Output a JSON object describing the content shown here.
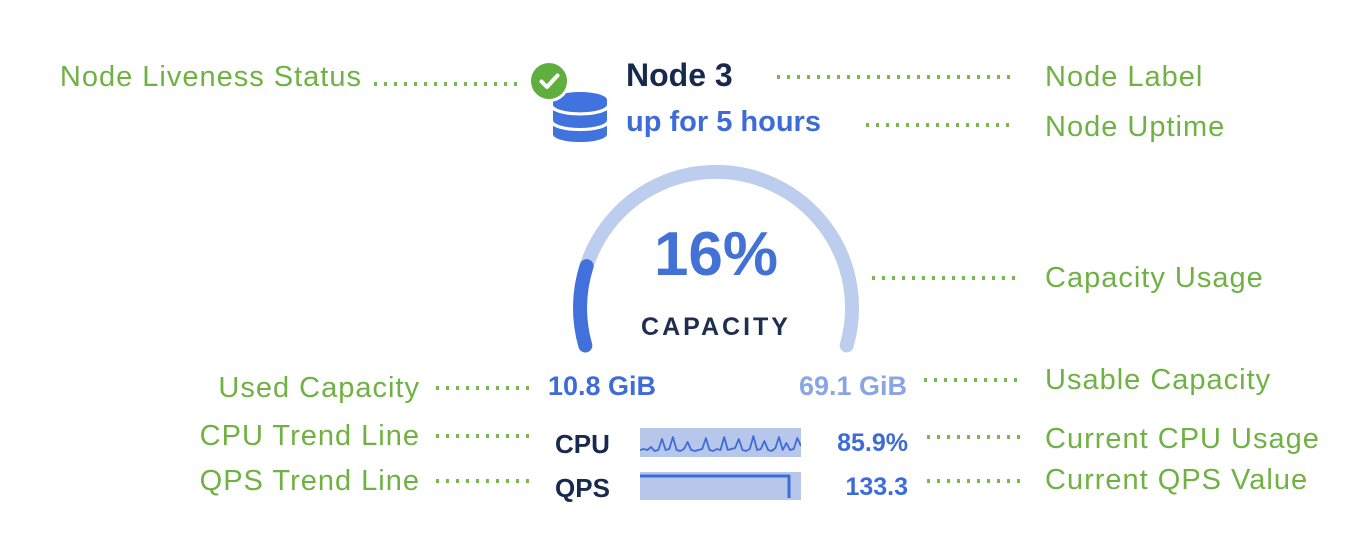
{
  "colors": {
    "annotation_green": "#6fb243",
    "leader_dot_green": "#79b851",
    "primary_blue": "#3d6cd8",
    "gauge_track_blue": "#bccded",
    "gauge_fill_blue": "#4371dc",
    "muted_blue": "#8aa5e5",
    "trend_bg_blue": "#b7c7ec",
    "dark_navy": "#17294d",
    "liveness_green": "#5fae3e"
  },
  "annotations": {
    "left": [
      {
        "label": "Node Liveness Status"
      },
      {
        "label": "Used Capacity"
      },
      {
        "label": "CPU Trend Line"
      },
      {
        "label": "QPS Trend Line"
      }
    ],
    "right": [
      {
        "label": "Node Label"
      },
      {
        "label": "Node Uptime"
      },
      {
        "label": "Capacity Usage"
      },
      {
        "label": "Usable Capacity"
      },
      {
        "label": "Current CPU Usage"
      },
      {
        "label": "Current QPS Value"
      }
    ]
  },
  "node_card": {
    "name": "Node 3",
    "uptime": "up for 5 hours",
    "liveness_status": "healthy",
    "capacity": {
      "percent": 16,
      "percent_label": "16%",
      "caption": "CAPACITY",
      "used": "10.8 GiB",
      "usable": "69.1 GiB",
      "gauge_span_degrees": 212,
      "gauge_start_degree": 196
    },
    "cpu": {
      "label": "CPU",
      "value": "85.9%",
      "sparkline": [
        22,
        21,
        22,
        19,
        23,
        22,
        11,
        22,
        21,
        9,
        22,
        23,
        21,
        14,
        22,
        23,
        22,
        21,
        10,
        22,
        23,
        21,
        22,
        9,
        22,
        21,
        20,
        11,
        22,
        23,
        21,
        8,
        22,
        21,
        13,
        22,
        23,
        20,
        9,
        22,
        15,
        22,
        21,
        10,
        18
      ]
    },
    "qps": {
      "label": "QPS",
      "value": "133.3",
      "trend": [
        [
          0,
          4
        ],
        [
          149,
          4
        ],
        [
          149,
          26
        ]
      ]
    }
  }
}
